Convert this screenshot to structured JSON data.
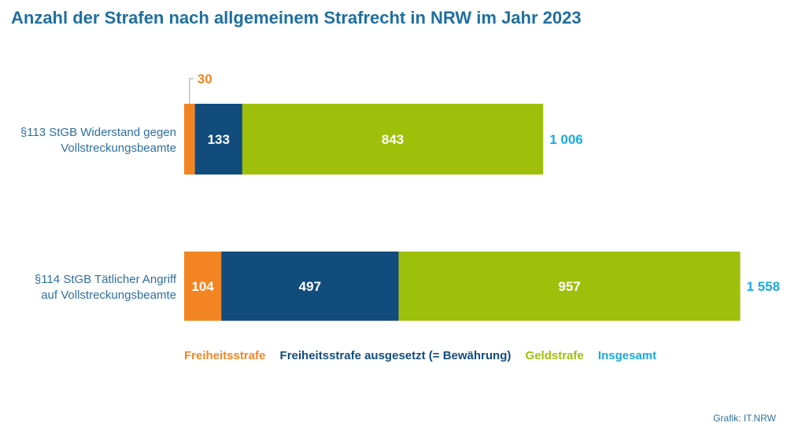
{
  "title": "Anzahl der Strafen nach allgemeinem Strafrecht in NRW im Jahr 2023",
  "source": "Grafik: IT.NRW",
  "colors": {
    "freiheitsstrafe": "#f28522",
    "ausgesetzt": "#124c7d",
    "geldstrafe": "#9fc00a",
    "insgesamt": "#1aa9e0"
  },
  "chart_data": {
    "type": "bar",
    "orientation": "horizontal",
    "stacked": true,
    "categories": [
      "§113 StGB Widerstand gegen Vollstreckungsbeamte",
      "§114 StGB Tätlicher Angriff auf Vollstreckungsbeamte"
    ],
    "category_lines": [
      [
        "§113 StGB Widerstand gegen",
        "Vollstreckungsbeamte"
      ],
      [
        "§114 StGB Tätlicher Angriff",
        "auf Vollstreckungsbeamte"
      ]
    ],
    "series": [
      {
        "name": "Freiheitsstrafe",
        "values": [
          30,
          104
        ],
        "labels": [
          "30",
          "104"
        ]
      },
      {
        "name": "Freiheitsstrafe ausgesetzt (= Bewährung)",
        "values": [
          133,
          497
        ],
        "labels": [
          "133",
          "497"
        ]
      },
      {
        "name": "Geldstrafe",
        "values": [
          843,
          957
        ],
        "labels": [
          "843",
          "957"
        ]
      }
    ],
    "totals": {
      "name": "Insgesamt",
      "values": [
        1006,
        1558
      ],
      "labels": [
        "1 006",
        "1 558"
      ]
    },
    "legend_position": "bottom",
    "grid": false
  }
}
